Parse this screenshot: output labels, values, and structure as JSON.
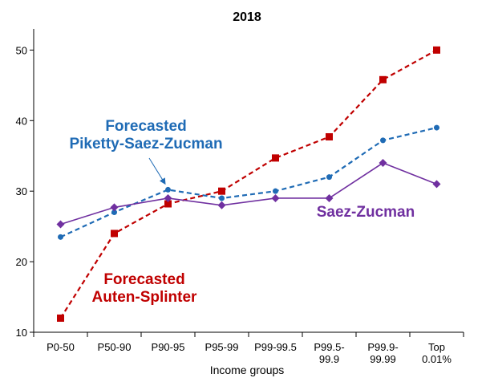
{
  "chart_data": {
    "type": "line",
    "title": "2018",
    "xlabel": "Income groups",
    "ylabel": "",
    "ylim": [
      10,
      53
    ],
    "yticks": [
      10,
      20,
      30,
      40,
      50
    ],
    "grid": false,
    "categories": [
      [
        "P0-50"
      ],
      [
        "P50-90"
      ],
      [
        "P90-95"
      ],
      [
        "P95-99"
      ],
      [
        "P99-99.5"
      ],
      [
        "P99.5-",
        "99.9"
      ],
      [
        "P99.9-",
        "99.99"
      ],
      [
        "Top",
        "0.01%"
      ]
    ],
    "series": [
      {
        "key": "autensplinter",
        "name": "Forecasted Auten-Splinter",
        "label_lines": [
          "Forecasted",
          "Auten-Splinter"
        ],
        "color": "#c00000",
        "marker": "square",
        "dash": "dashed",
        "values": [
          12.0,
          24.0,
          28.2,
          30.0,
          34.7,
          37.7,
          45.8,
          50.0
        ]
      },
      {
        "key": "psz",
        "name": "Forecasted Piketty-Saez-Zucman",
        "label_lines": [
          "Forecasted",
          "Piketty-Saez-Zucman"
        ],
        "color": "#1f6bb5",
        "marker": "circle",
        "dash": "dashed",
        "values": [
          23.5,
          27.0,
          30.2,
          29.0,
          30.0,
          32.0,
          37.2,
          39.0
        ]
      },
      {
        "key": "saezzucman",
        "name": "Saez-Zucman",
        "label_lines": [
          "Saez-Zucman"
        ],
        "color": "#7030a0",
        "marker": "diamond",
        "dash": "solid",
        "values": [
          25.3,
          27.7,
          29.0,
          28.0,
          29.0,
          29.0,
          34.0,
          31.0
        ]
      }
    ]
  }
}
